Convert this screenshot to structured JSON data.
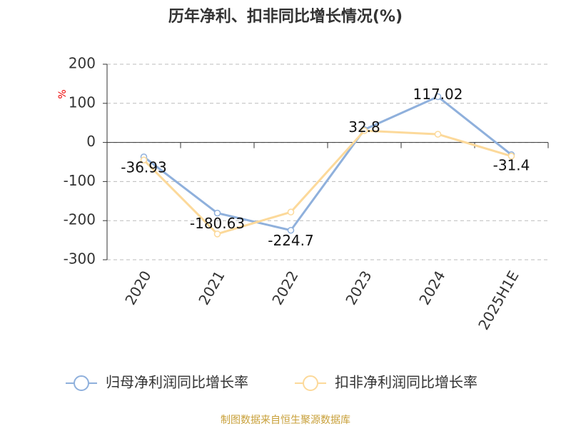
{
  "chart_data": {
    "type": "line",
    "title": "历年净利、扣非同比增长情况(%)",
    "y_label": "%",
    "categories": [
      "2020",
      "2021",
      "2022",
      "2023",
      "2024",
      "2025H1E"
    ],
    "series": [
      {
        "name": "归母净利润同比增长率",
        "color": "#8fb0dc",
        "values": [
          -36.93,
          -180.63,
          -224.7,
          32.8,
          117.02,
          -31.4
        ],
        "show_labels": true
      },
      {
        "name": "扣非净利润同比增长率",
        "color": "#fcd99a",
        "values": [
          -45,
          -234,
          -178,
          30,
          21,
          -35
        ],
        "show_labels": false
      }
    ],
    "ylim": [
      -300,
      200
    ],
    "yticks": [
      -300,
      -200,
      -100,
      0,
      100,
      200
    ],
    "grid": true,
    "legend": "bottom",
    "source": "制图数据来自恒生聚源数据库"
  }
}
